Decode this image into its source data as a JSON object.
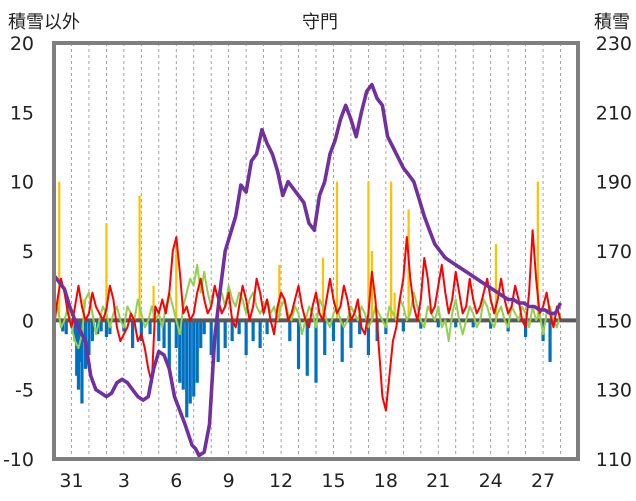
{
  "chart_data": {
    "type": "line",
    "title": "守門",
    "ylabel_left": "積雪以外",
    "ylabel_right": "積雪",
    "ylim_left": [
      -10,
      20
    ],
    "ylim_right": [
      110,
      230
    ],
    "yticks_left": [
      20,
      15,
      10,
      5,
      0,
      -5,
      -10
    ],
    "yticks_right": [
      230,
      210,
      190,
      170,
      150,
      130,
      110
    ],
    "x_tick_labels": [
      "31",
      "3",
      "6",
      "9",
      "12",
      "15",
      "18",
      "21",
      "24",
      "27"
    ],
    "x_tick_days": [
      1,
      4,
      7,
      10,
      13,
      16,
      19,
      22,
      25,
      28
    ],
    "xlim": [
      0,
      30
    ],
    "grid": "vertical-dashed-daily",
    "colors": {
      "snow_depth": "#7030a0",
      "temperature": "#ff0000",
      "temp_change": "#92d050",
      "precip": "#ffc000",
      "negative_bars": "#0070c0",
      "baseline": "#595959",
      "frame": "#7f7f7f"
    },
    "series": [
      {
        "key": "snow_depth",
        "axis": "right",
        "x": [
          0,
          0.3,
          0.6,
          0.9,
          1.2,
          1.5,
          1.8,
          2.1,
          2.4,
          2.7,
          3.0,
          3.3,
          3.6,
          3.9,
          4.2,
          4.5,
          4.8,
          5.1,
          5.4,
          5.7,
          6.0,
          6.3,
          6.6,
          6.9,
          7.2,
          7.5,
          7.7,
          7.9,
          8.1,
          8.3,
          8.6,
          8.9,
          9.2,
          9.5,
          9.8,
          10.1,
          10.4,
          10.7,
          11.0,
          11.3,
          11.6,
          11.9,
          12.2,
          12.5,
          12.8,
          13.1,
          13.4,
          13.7,
          14.0,
          14.3,
          14.6,
          14.9,
          15.2,
          15.5,
          15.8,
          16.1,
          16.4,
          16.7,
          17.0,
          17.3,
          17.6,
          17.9,
          18.2,
          18.5,
          18.8,
          19.1,
          19.4,
          19.7,
          20.0,
          20.3,
          20.6,
          20.9,
          21.2,
          21.5,
          21.8,
          22.1,
          22.4,
          22.7,
          23.0,
          23.3,
          23.6,
          23.9,
          24.2,
          24.5,
          24.8,
          25.1,
          25.4,
          25.7,
          26.0,
          26.3,
          26.6,
          26.9,
          27.2,
          27.5,
          27.8,
          28.1,
          28.4,
          28.7,
          29.0
        ],
        "values": [
          163,
          161,
          159,
          154,
          150,
          147,
          144,
          134,
          130,
          129,
          128,
          129,
          132,
          133,
          132,
          130,
          128,
          127,
          128,
          136,
          141,
          140,
          136,
          128,
          124,
          120,
          117,
          114,
          113,
          111,
          112,
          120,
          145,
          158,
          170,
          175,
          180,
          189,
          187,
          196,
          198,
          205,
          201,
          198,
          193,
          186,
          190,
          188,
          186,
          184,
          178,
          176,
          186,
          190,
          198,
          202,
          208,
          212,
          208,
          203,
          210,
          216,
          218,
          214,
          212,
          203,
          200,
          197,
          194,
          192,
          190,
          185,
          180,
          176,
          172,
          170,
          168,
          167,
          166,
          165,
          164,
          163,
          162,
          161,
          160,
          159,
          158,
          157,
          156,
          156,
          155,
          155,
          154,
          154,
          153,
          153,
          152,
          152,
          155
        ]
      },
      {
        "key": "temperature",
        "axis": "left",
        "x": [
          0,
          0.2,
          0.4,
          0.6,
          0.8,
          1.0,
          1.2,
          1.4,
          1.6,
          1.8,
          2.0,
          2.2,
          2.4,
          2.6,
          2.8,
          3.0,
          3.2,
          3.4,
          3.6,
          3.8,
          4.0,
          4.2,
          4.4,
          4.6,
          4.8,
          5.0,
          5.2,
          5.4,
          5.6,
          5.8,
          6.0,
          6.2,
          6.4,
          6.6,
          6.8,
          7.0,
          7.2,
          7.4,
          7.6,
          7.8,
          8.0,
          8.2,
          8.4,
          8.6,
          8.8,
          9.0,
          9.2,
          9.4,
          9.6,
          9.8,
          10.0,
          10.2,
          10.4,
          10.6,
          10.8,
          11.0,
          11.2,
          11.4,
          11.6,
          11.8,
          12.0,
          12.2,
          12.4,
          12.6,
          12.8,
          13.0,
          13.2,
          13.4,
          13.6,
          13.8,
          14.0,
          14.2,
          14.4,
          14.6,
          14.8,
          15.0,
          15.2,
          15.4,
          15.6,
          15.8,
          16.0,
          16.2,
          16.4,
          16.6,
          16.8,
          17.0,
          17.2,
          17.4,
          17.6,
          17.8,
          18.0,
          18.2,
          18.4,
          18.6,
          18.8,
          19.0,
          19.2,
          19.4,
          19.6,
          19.8,
          20.0,
          20.2,
          20.4,
          20.6,
          20.8,
          21.0,
          21.2,
          21.4,
          21.6,
          21.8,
          22.0,
          22.2,
          22.4,
          22.6,
          22.8,
          23.0,
          23.2,
          23.4,
          23.6,
          23.8,
          24.0,
          24.2,
          24.4,
          24.6,
          24.8,
          25.0,
          25.2,
          25.4,
          25.6,
          25.8,
          26.0,
          26.2,
          26.4,
          26.6,
          26.8,
          27.0,
          27.2,
          27.4,
          27.6,
          27.8,
          28.0,
          28.2,
          28.4,
          28.6,
          28.8,
          29.0
        ],
        "values": [
          -0.5,
          1.5,
          3.0,
          2.0,
          0.5,
          -0.5,
          1.0,
          2.5,
          1.0,
          0.0,
          0.5,
          2.0,
          1.0,
          0.5,
          0.0,
          0.8,
          2.5,
          1.5,
          -0.5,
          -1.5,
          -1.0,
          -0.5,
          0.5,
          0.0,
          -1.5,
          -1.0,
          -2.0,
          -3.5,
          -4.5,
          1.0,
          0.5,
          1.5,
          0.5,
          2.0,
          5.0,
          6.0,
          3.5,
          0.5,
          1.0,
          0.0,
          0.5,
          2.0,
          3.0,
          1.5,
          0.5,
          1.0,
          2.5,
          1.5,
          0.5,
          1.0,
          2.0,
          0.0,
          -0.5,
          1.0,
          2.5,
          1.5,
          0.0,
          1.0,
          3.0,
          2.0,
          0.5,
          1.5,
          0.0,
          -1.0,
          1.0,
          2.0,
          1.5,
          0.0,
          0.5,
          1.5,
          2.5,
          1.0,
          0.0,
          -0.5,
          1.0,
          2.0,
          0.5,
          0.0,
          1.5,
          3.0,
          1.5,
          0.5,
          1.0,
          2.5,
          1.5,
          0.0,
          0.5,
          1.5,
          -0.5,
          -1.0,
          0.5,
          3.5,
          1.5,
          -2.0,
          -5.5,
          -6.5,
          -4.0,
          -1.5,
          -0.5,
          1.5,
          3.0,
          6.0,
          3.0,
          1.0,
          0.0,
          1.5,
          4.5,
          3.0,
          0.5,
          1.0,
          2.5,
          4.0,
          2.0,
          0.5,
          1.5,
          3.5,
          2.0,
          0.5,
          1.0,
          3.0,
          1.5,
          0.5,
          1.0,
          2.0,
          3.0,
          1.5,
          0.5,
          1.5,
          3.0,
          1.5,
          0.5,
          1.0,
          2.5,
          1.5,
          0.0,
          -0.5,
          2.0,
          6.5,
          3.0,
          0.5,
          1.0,
          2.0,
          0.5,
          -0.5,
          1.0,
          0.0
        ]
      },
      {
        "key": "temp_change",
        "axis": "left",
        "x": [
          0,
          0.2,
          0.4,
          0.6,
          0.8,
          1.0,
          1.2,
          1.4,
          1.6,
          1.8,
          2.0,
          2.2,
          2.4,
          2.6,
          2.8,
          3.0,
          3.2,
          3.4,
          3.6,
          3.8,
          4.0,
          4.2,
          4.4,
          4.6,
          4.8,
          5.0,
          5.2,
          5.4,
          5.6,
          5.8,
          6.0,
          6.2,
          6.4,
          6.6,
          6.8,
          7.0,
          7.2,
          7.4,
          7.6,
          7.8,
          8.0,
          8.2,
          8.4,
          8.6,
          8.8,
          9.0,
          9.2,
          9.4,
          9.6,
          9.8,
          10.0,
          10.2,
          10.4,
          10.6,
          10.8,
          11.0,
          11.2,
          11.4,
          11.6,
          11.8,
          12.0,
          12.2,
          12.4,
          12.6,
          12.8,
          13.0,
          13.2,
          13.4,
          13.6,
          13.8,
          14.0,
          14.2,
          14.4,
          14.6,
          14.8,
          15.0,
          15.2,
          15.4,
          15.6,
          15.8,
          16.0,
          16.2,
          16.4,
          16.6,
          16.8,
          17.0,
          17.2,
          17.4,
          17.6,
          17.8,
          18.0,
          18.2,
          18.4,
          18.6,
          18.8,
          19.0,
          19.2,
          19.4,
          19.6,
          19.8,
          20.0,
          20.2,
          20.4,
          20.6,
          20.8,
          21.0,
          21.2,
          21.4,
          21.6,
          21.8,
          22.0,
          22.2,
          22.4,
          22.6,
          22.8,
          23.0,
          23.2,
          23.4,
          23.6,
          23.8,
          24.0,
          24.2,
          24.4,
          24.6,
          24.8,
          25.0,
          25.2,
          25.4,
          25.6,
          25.8,
          26.0,
          26.2,
          26.4,
          26.6,
          26.8,
          27.0,
          27.2,
          27.4,
          27.6,
          27.8,
          28.0,
          28.2,
          28.4,
          28.6,
          28.8,
          29.0
        ],
        "values": [
          0.5,
          1.0,
          -0.5,
          0.0,
          1.0,
          -0.5,
          -1.5,
          -2.0,
          -1.0,
          1.5,
          2.0,
          0.5,
          -1.0,
          0.0,
          1.0,
          0.5,
          -0.5,
          0.5,
          1.0,
          0.0,
          -0.5,
          1.0,
          0.5,
          0.0,
          1.5,
          0.5,
          -0.5,
          0.0,
          1.0,
          0.0,
          0.5,
          -0.5,
          1.0,
          2.0,
          1.0,
          0.0,
          -1.0,
          1.0,
          2.0,
          3.0,
          2.5,
          4.0,
          2.0,
          3.5,
          2.0,
          1.0,
          2.5,
          1.5,
          2.0,
          1.0,
          2.5,
          1.5,
          1.0,
          2.0,
          1.5,
          0.5,
          1.5,
          2.0,
          1.0,
          0.5,
          1.0,
          1.5,
          0.5,
          1.0,
          0.0,
          1.0,
          1.5,
          0.5,
          0.0,
          1.0,
          0.5,
          -1.0,
          0.0,
          1.0,
          0.5,
          -0.5,
          1.5,
          1.0,
          0.0,
          -0.5,
          0.5,
          1.0,
          0.0,
          -0.5,
          0.0,
          1.0,
          0.5,
          0.0,
          1.0,
          0.5,
          -0.5,
          0.0,
          1.0,
          0.5,
          0.0,
          -0.5,
          1.0,
          0.5,
          0.0,
          1.5,
          1.0,
          0.0,
          0.5,
          2.0,
          1.0,
          0.0,
          -0.5,
          1.0,
          0.5,
          0.0,
          1.0,
          -0.5,
          0.0,
          -1.5,
          0.5,
          1.5,
          0.0,
          -1.0,
          0.0,
          1.0,
          0.5,
          -0.5,
          0.0,
          1.5,
          1.0,
          0.0,
          -0.5,
          0.5,
          1.0,
          0.0,
          -0.5,
          1.0,
          0.5,
          0.0,
          1.0,
          0.5,
          -0.5,
          1.0,
          0.0,
          0.5,
          -1.0,
          0.5,
          1.0,
          0.0,
          -0.5,
          0.5
        ]
      }
    ],
    "bars": [
      {
        "key": "precip",
        "axis": "left",
        "x": [
          0.3,
          1.7,
          3.0,
          4.9,
          5.7,
          7.0,
          12.9,
          15.4,
          16.2,
          18.0,
          18.2,
          19.3,
          19.5,
          20.3,
          25.3,
          27.7
        ],
        "values": [
          10.0,
          1.5,
          7.0,
          9.0,
          2.5,
          5.5,
          4.0,
          4.5,
          10.0,
          10.0,
          5.0,
          10.0,
          2.0,
          8.0,
          5.5,
          10.0
        ]
      },
      {
        "key": "negative_bars",
        "axis": "left",
        "x": [
          0.5,
          0.7,
          1.2,
          1.3,
          1.4,
          1.5,
          1.6,
          1.8,
          2.0,
          2.2,
          2.5,
          2.7,
          3.0,
          3.2,
          4.0,
          4.5,
          5.0,
          5.5,
          6.0,
          6.3,
          6.6,
          7.0,
          7.2,
          7.4,
          7.6,
          7.8,
          8.0,
          8.2,
          8.4,
          8.6,
          9.0,
          9.4,
          9.8,
          10.2,
          10.6,
          11.0,
          11.4,
          11.8,
          12.2,
          13.5,
          14.0,
          14.5,
          15.0,
          15.5,
          16.0,
          16.5,
          17.0,
          17.5,
          18.0,
          18.5,
          19.0,
          20.0,
          21.0,
          22.0,
          23.0,
          24.0,
          25.0,
          26.0,
          27.0,
          28.0,
          28.4
        ],
        "values": [
          -0.8,
          -1.0,
          -1.5,
          -4.0,
          -5.0,
          -3.0,
          -6.0,
          -3.5,
          -2.5,
          -1.5,
          -1.0,
          -0.8,
          -1.2,
          -1.0,
          -0.8,
          -2.0,
          -1.5,
          -1.0,
          -1.5,
          -2.0,
          -3.5,
          -2.0,
          -4.5,
          -5.0,
          -7.0,
          -6.0,
          -5.5,
          -4.5,
          -2.0,
          -1.0,
          -2.5,
          -3.0,
          -2.0,
          -1.5,
          -1.0,
          -2.5,
          -1.5,
          -2.0,
          -1.0,
          -1.5,
          -3.5,
          -4.0,
          -4.5,
          -2.5,
          -1.5,
          -3.0,
          -2.0,
          -1.0,
          -2.5,
          -1.5,
          -1.0,
          -0.8,
          -0.6,
          -0.5,
          -0.5,
          -0.5,
          -0.6,
          -0.8,
          -1.2,
          -1.5,
          -3.0
        ]
      }
    ]
  }
}
